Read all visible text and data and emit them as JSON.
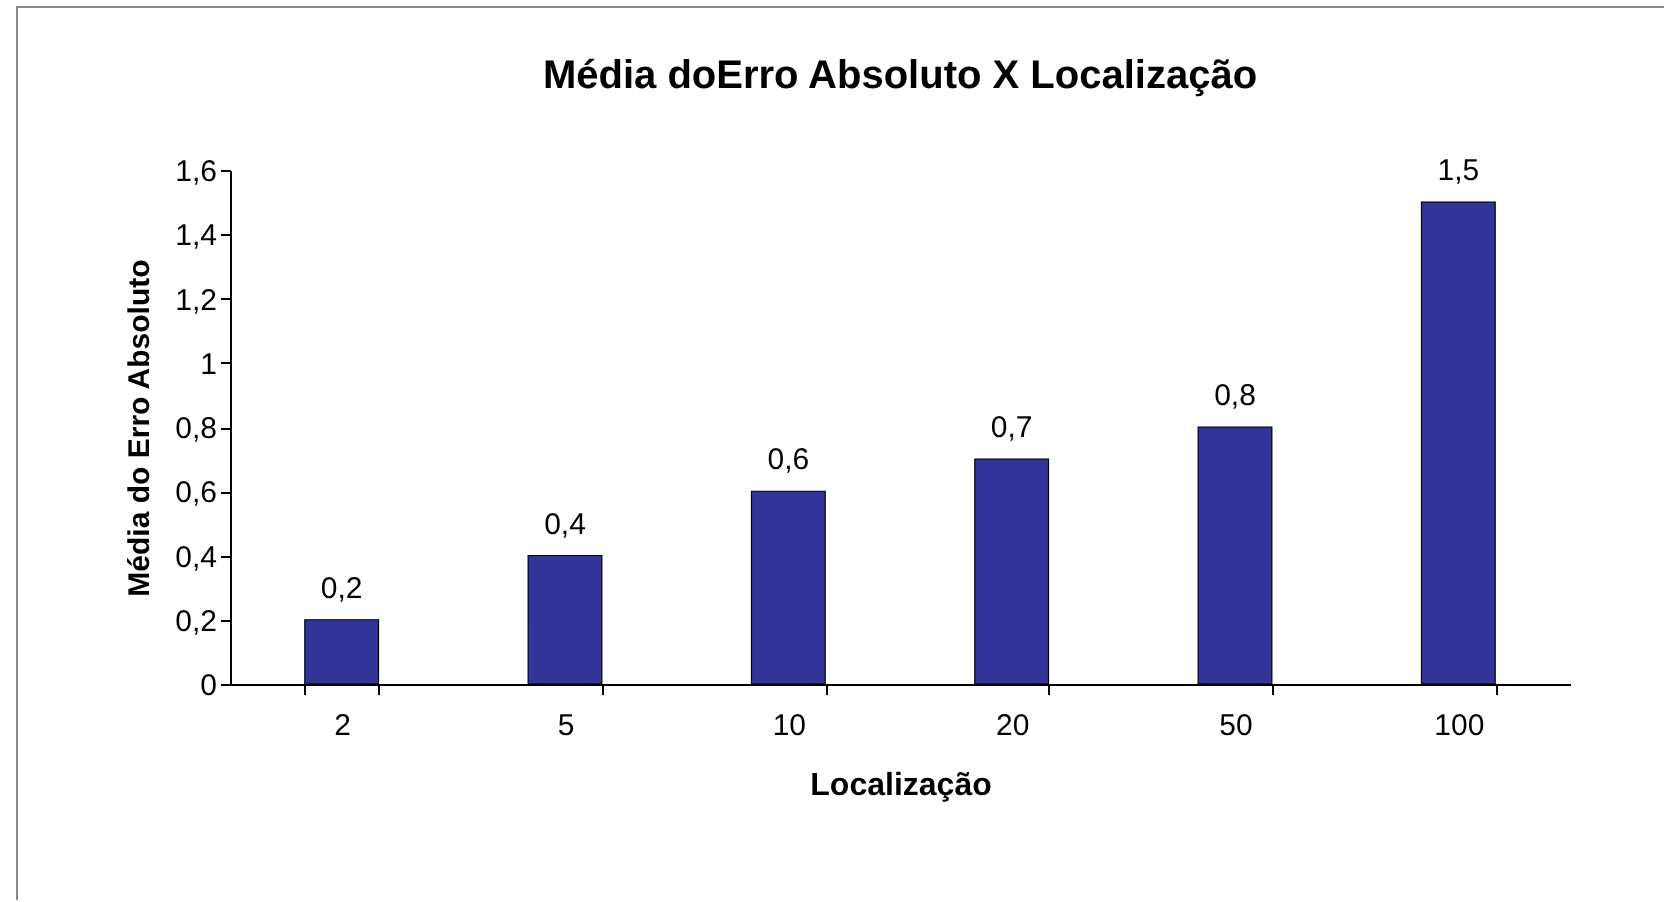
{
  "chart_data": {
    "type": "bar",
    "title": "Média doErro Absoluto X Localização",
    "xlabel": "Localização",
    "ylabel": "Média do Erro Absoluto",
    "categories": [
      "2",
      "5",
      "10",
      "20",
      "50",
      "100"
    ],
    "values": [
      0.2,
      0.4,
      0.6,
      0.7,
      0.8,
      1.5
    ],
    "value_labels": [
      "0,2",
      "0,4",
      "0,6",
      "0,7",
      "0,8",
      "1,5"
    ],
    "color": "#333399",
    "ylim": [
      0,
      1.6
    ],
    "yticks": [
      0,
      {
        "value": 0.2,
        "label": "0,2"
      },
      {
        "value": 0.4,
        "label": "0,4"
      },
      {
        "value": 0.6,
        "label": "0,6"
      },
      {
        "value": 0.8,
        "label": "0,8"
      },
      1,
      {
        "value": 1.2,
        "label": "1,2"
      },
      {
        "value": 1.4,
        "label": "1,4"
      },
      {
        "value": 1.6,
        "label": "1,6"
      }
    ],
    "grid": false
  }
}
